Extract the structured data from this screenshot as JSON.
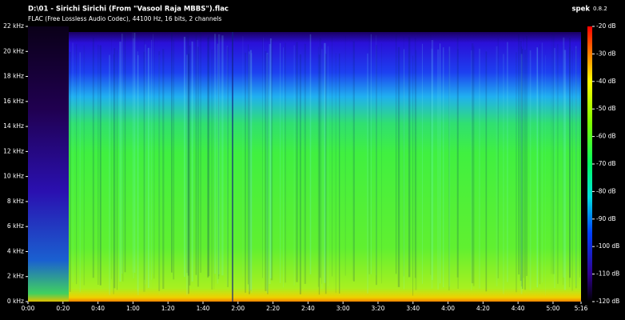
{
  "chart_data": {
    "type": "spectrogram",
    "title": "D:\\01 - Sirichi Sirichi (From \"Vasool Raja MBBS\").flac",
    "subtitle": "FLAC (Free Lossless Audio Codec), 44100 Hz, 16 bits, 2 channels",
    "app": "spek",
    "version": "0.8.2",
    "xlim": [
      0,
      316
    ],
    "xticks": [
      {
        "value": 0,
        "label": "0:00"
      },
      {
        "value": 20,
        "label": "0:20"
      },
      {
        "value": 40,
        "label": "0:40"
      },
      {
        "value": 60,
        "label": "1:00"
      },
      {
        "value": 80,
        "label": "1:20"
      },
      {
        "value": 100,
        "label": "1:40"
      },
      {
        "value": 120,
        "label": "2:00"
      },
      {
        "value": 140,
        "label": "2:20"
      },
      {
        "value": 160,
        "label": "2:40"
      },
      {
        "value": 180,
        "label": "3:00"
      },
      {
        "value": 200,
        "label": "3:20"
      },
      {
        "value": 220,
        "label": "3:40"
      },
      {
        "value": 240,
        "label": "4:00"
      },
      {
        "value": 260,
        "label": "4:20"
      },
      {
        "value": 280,
        "label": "4:40"
      },
      {
        "value": 300,
        "label": "5:00"
      },
      {
        "value": 316,
        "label": "5:16"
      }
    ],
    "ylim": [
      0,
      22
    ],
    "yticks": [
      {
        "value": 0,
        "label": "0 kHz"
      },
      {
        "value": 2,
        "label": "2 kHz"
      },
      {
        "value": 4,
        "label": "4 kHz"
      },
      {
        "value": 6,
        "label": "6 kHz"
      },
      {
        "value": 8,
        "label": "8 kHz"
      },
      {
        "value": 10,
        "label": "10 kHz"
      },
      {
        "value": 12,
        "label": "12 kHz"
      },
      {
        "value": 14,
        "label": "14 kHz"
      },
      {
        "value": 16,
        "label": "16 kHz"
      },
      {
        "value": 18,
        "label": "18 kHz"
      },
      {
        "value": 20,
        "label": "20 kHz"
      },
      {
        "value": 22,
        "label": "22 kHz"
      }
    ],
    "zlim": [
      -120,
      -20
    ],
    "zticks": [
      {
        "value": -20,
        "label": "-20 dB"
      },
      {
        "value": -30,
        "label": "-30 dB"
      },
      {
        "value": -40,
        "label": "-40 dB"
      },
      {
        "value": -50,
        "label": "-50 dB"
      },
      {
        "value": -60,
        "label": "-60 dB"
      },
      {
        "value": -70,
        "label": "-70 dB"
      },
      {
        "value": -80,
        "label": "-80 dB"
      },
      {
        "value": -90,
        "label": "-90 dB"
      },
      {
        "value": -100,
        "label": "-100 dB"
      },
      {
        "value": -110,
        "label": "-110 dB"
      },
      {
        "value": -120,
        "label": "-120 dB"
      }
    ]
  }
}
